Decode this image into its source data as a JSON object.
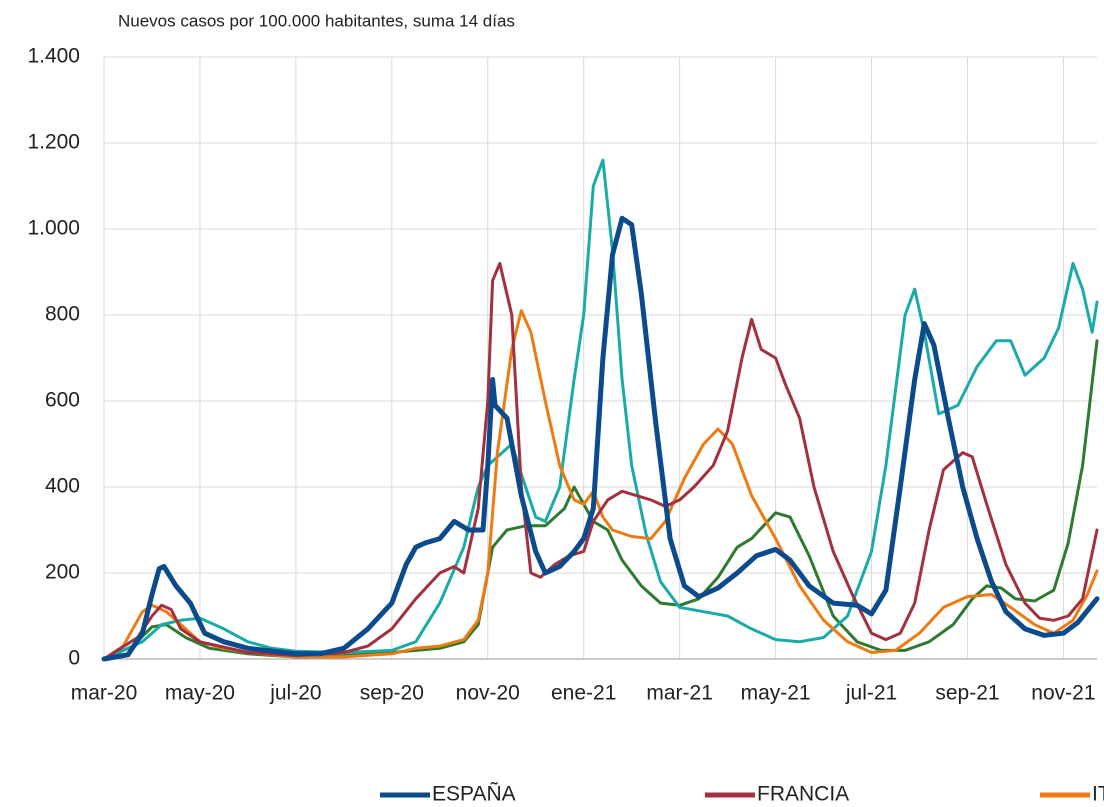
{
  "chart_data": {
    "type": "line",
    "subtitle": "Nuevos casos por 100.000 habitantes, suma 14 días",
    "xlim": [
      0,
      20.7
    ],
    "xticks": [
      {
        "value": 0,
        "label": "mar-20"
      },
      {
        "value": 2,
        "label": "may-20"
      },
      {
        "value": 4,
        "label": "jul-20"
      },
      {
        "value": 6,
        "label": "sep-20"
      },
      {
        "value": 8,
        "label": "nov-20"
      },
      {
        "value": 10,
        "label": "ene-21"
      },
      {
        "value": 12,
        "label": "mar-21"
      },
      {
        "value": 14,
        "label": "may-21"
      },
      {
        "value": 16,
        "label": "jul-21"
      },
      {
        "value": 18,
        "label": "sep-21"
      },
      {
        "value": 20,
        "label": "nov-21"
      }
    ],
    "ylim": [
      0,
      1400
    ],
    "yticks": [
      0,
      200,
      400,
      600,
      800,
      {
        "value": 1000,
        "label": "1.000"
      },
      {
        "value": 1200,
        "label": "1.200"
      },
      {
        "value": 1400,
        "label": "1.400"
      }
    ],
    "grid": true,
    "series": [
      {
        "name": "ESPAÑA",
        "color": "#0b4a8b",
        "x": [
          0,
          0.5,
          0.8,
          1.0,
          1.15,
          1.25,
          1.5,
          1.8,
          2.1,
          2.5,
          3,
          4,
          4.5,
          5,
          5.5,
          6,
          6.3,
          6.5,
          6.7,
          7,
          7.3,
          7.6,
          7.9,
          8.0,
          8.1,
          8.15,
          8.4,
          8.7,
          9.0,
          9.2,
          9.5,
          9.8,
          10.0,
          10.2,
          10.4,
          10.6,
          10.8,
          11.0,
          11.2,
          11.5,
          11.8,
          12.1,
          12.4,
          12.8,
          13.2,
          13.6,
          14.0,
          14.3,
          14.7,
          15.2,
          15.7,
          16.0,
          16.3,
          16.6,
          16.9,
          17.1,
          17.3,
          17.6,
          17.9,
          18.2,
          18.5,
          18.8,
          19.2,
          19.6,
          20.0,
          20.3,
          20.7
        ],
        "values": [
          0,
          10,
          60,
          150,
          210,
          215,
          170,
          130,
          60,
          40,
          25,
          12,
          12,
          25,
          70,
          130,
          220,
          260,
          270,
          280,
          320,
          300,
          300,
          450,
          650,
          590,
          560,
          380,
          250,
          200,
          215,
          250,
          280,
          350,
          700,
          940,
          1025,
          1010,
          850,
          550,
          280,
          170,
          145,
          165,
          200,
          240,
          255,
          230,
          170,
          130,
          125,
          105,
          160,
          400,
          650,
          780,
          730,
          560,
          400,
          280,
          180,
          110,
          70,
          55,
          60,
          85,
          140
        ]
      },
      {
        "name": "FRANCIA",
        "color": "#a3303f",
        "x": [
          0,
          0.7,
          1.0,
          1.2,
          1.4,
          1.6,
          2.0,
          3,
          4,
          5,
          5.5,
          6,
          6.5,
          7,
          7.3,
          7.5,
          7.8,
          8.0,
          8.1,
          8.25,
          8.5,
          8.7,
          8.9,
          9.1,
          9.4,
          9.7,
          10.0,
          10.2,
          10.5,
          10.8,
          11.1,
          11.4,
          11.7,
          12.0,
          12.3,
          12.7,
          13.0,
          13.3,
          13.5,
          13.7,
          14.0,
          14.2,
          14.5,
          14.8,
          15.2,
          15.6,
          16.0,
          16.3,
          16.6,
          16.9,
          17.2,
          17.5,
          17.9,
          18.1,
          18.4,
          18.8,
          19.2,
          19.5,
          19.8,
          20.1,
          20.4,
          20.7
        ],
        "values": [
          0,
          50,
          100,
          125,
          115,
          70,
          40,
          15,
          8,
          15,
          30,
          70,
          140,
          200,
          215,
          200,
          350,
          600,
          880,
          920,
          800,
          400,
          200,
          190,
          220,
          240,
          250,
          320,
          370,
          390,
          380,
          370,
          355,
          370,
          400,
          450,
          530,
          700,
          790,
          720,
          700,
          640,
          560,
          400,
          250,
          150,
          60,
          45,
          60,
          130,
          300,
          440,
          480,
          470,
          360,
          220,
          130,
          95,
          90,
          100,
          140,
          300
        ]
      },
      {
        "name": "ITALIA",
        "color": "#f07a12",
        "x": [
          0,
          0.4,
          0.8,
          1.0,
          1.3,
          1.6,
          2,
          2.5,
          3,
          4,
          5,
          6,
          6.5,
          7,
          7.5,
          7.8,
          8.0,
          8.2,
          8.5,
          8.7,
          8.9,
          9.2,
          9.5,
          9.8,
          10.0,
          10.2,
          10.4,
          10.6,
          11.0,
          11.4,
          11.7,
          12.1,
          12.5,
          12.8,
          13.1,
          13.5,
          14.0,
          14.5,
          15.0,
          15.5,
          16.0,
          16.5,
          17.0,
          17.5,
          18.0,
          18.5,
          18.9,
          19.4,
          19.8,
          20.2,
          20.5,
          20.7
        ],
        "values": [
          0,
          30,
          110,
          125,
          110,
          80,
          40,
          25,
          15,
          5,
          5,
          12,
          25,
          30,
          45,
          90,
          200,
          480,
          720,
          810,
          760,
          600,
          450,
          370,
          360,
          390,
          330,
          300,
          285,
          280,
          320,
          420,
          500,
          535,
          500,
          380,
          280,
          170,
          90,
          40,
          15,
          20,
          60,
          120,
          145,
          150,
          120,
          80,
          60,
          90,
          150,
          205
        ]
      },
      {
        "color": "#1aaba8",
        "x": [
          0,
          0.8,
          1.2,
          1.6,
          2.0,
          2.5,
          3,
          3.5,
          4,
          5,
          6,
          6.5,
          7,
          7.5,
          7.8,
          8.0,
          8.3,
          8.5,
          8.7,
          9.0,
          9.2,
          9.5,
          9.8,
          10.0,
          10.2,
          10.4,
          10.6,
          10.8,
          11.0,
          11.3,
          11.6,
          12.0,
          12.5,
          13.0,
          13.5,
          14.0,
          14.5,
          15.0,
          15.5,
          16.0,
          16.3,
          16.7,
          16.9,
          17.1,
          17.4,
          17.8,
          18.2,
          18.6,
          18.9,
          19.2,
          19.6,
          19.9,
          20.2,
          20.4,
          20.6,
          20.7
        ],
        "values": [
          0,
          40,
          80,
          90,
          95,
          70,
          40,
          25,
          18,
          15,
          20,
          40,
          130,
          260,
          400,
          450,
          480,
          500,
          430,
          330,
          320,
          400,
          650,
          800,
          1100,
          1160,
          950,
          650,
          450,
          290,
          180,
          120,
          110,
          100,
          70,
          45,
          40,
          50,
          100,
          250,
          450,
          800,
          860,
          760,
          570,
          590,
          680,
          740,
          740,
          660,
          700,
          770,
          920,
          860,
          760,
          830
        ]
      },
      {
        "color": "#2e7a2e",
        "x": [
          0,
          0.6,
          1.0,
          1.3,
          1.7,
          2.2,
          3,
          4,
          5,
          6,
          7,
          7.5,
          7.8,
          8.1,
          8.4,
          8.8,
          9.2,
          9.6,
          9.8,
          10.0,
          10.2,
          10.5,
          10.8,
          11.2,
          11.6,
          12.0,
          12.4,
          12.8,
          13.2,
          13.5,
          14.0,
          14.3,
          14.7,
          15.2,
          15.7,
          16.2,
          16.7,
          17.2,
          17.7,
          18.1,
          18.4,
          18.7,
          19.0,
          19.4,
          19.8,
          20.1,
          20.4,
          20.7
        ],
        "values": [
          0,
          30,
          75,
          80,
          50,
          25,
          12,
          5,
          8,
          15,
          25,
          40,
          80,
          260,
          300,
          310,
          310,
          350,
          400,
          360,
          320,
          300,
          230,
          170,
          130,
          125,
          140,
          190,
          260,
          280,
          340,
          330,
          240,
          100,
          40,
          20,
          20,
          40,
          80,
          140,
          170,
          165,
          140,
          135,
          160,
          270,
          450,
          740
        ]
      }
    ]
  }
}
